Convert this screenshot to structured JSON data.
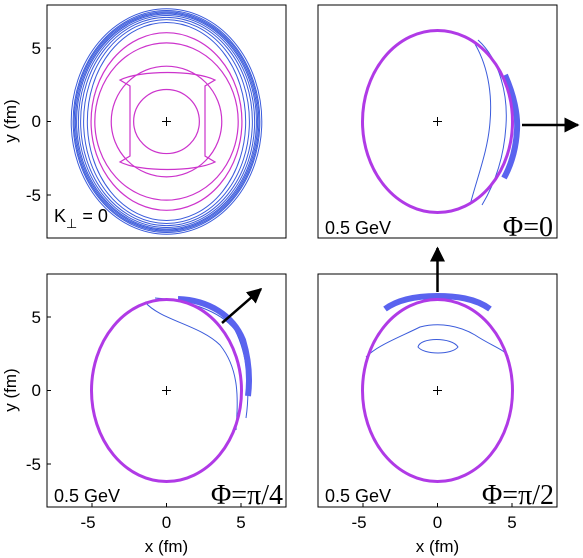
{
  "chart_data": [
    {
      "type": "contour",
      "panel": "top-left",
      "xlim": [
        -8,
        8
      ],
      "ylim": [
        -8,
        8
      ],
      "xticks": [],
      "yticks": [
        "-5",
        "0",
        "5"
      ],
      "xlabel": "",
      "ylabel": "y (fm)",
      "annotation_left": "K",
      "annotation_sub": "⊥",
      "annotation_rest": " = 0",
      "phi_label": "",
      "arrow": "none",
      "contours": {
        "blue": [
          [
            5.3,
            6.8
          ],
          [
            5.55,
            7.0
          ],
          [
            5.75,
            7.15
          ],
          [
            5.9,
            7.28
          ],
          [
            6.02,
            7.38
          ],
          [
            6.1,
            7.46
          ],
          [
            6.18,
            7.54
          ],
          [
            6.25,
            7.62
          ],
          [
            6.38,
            7.74
          ]
        ],
        "magenta": [
          [
            2.2,
            2.2
          ],
          [
            3.7,
            3.8
          ],
          [
            4.8,
            5.4
          ],
          [
            5.05,
            6.1
          ]
        ]
      }
    },
    {
      "type": "contour",
      "panel": "top-right",
      "xlim": [
        -8,
        8
      ],
      "ylim": [
        -8,
        8
      ],
      "xticks": [],
      "yticks": [],
      "xlabel": "",
      "ylabel": "",
      "annotation_left": "0.5 GeV",
      "phi_label": "Φ=0",
      "arrow": "right",
      "ellipse": [
        5.05,
        6.2
      ]
    },
    {
      "type": "contour",
      "panel": "bottom-left",
      "xlim": [
        -8,
        8
      ],
      "ylim": [
        -8,
        8
      ],
      "xticks": [
        "-5",
        "0",
        "5"
      ],
      "yticks": [
        "-5",
        "0",
        "5"
      ],
      "xlabel": "x (fm)",
      "ylabel": "y (fm)",
      "annotation_left": "0.5 GeV",
      "phi_label": "Φ=π/4",
      "arrow": "diagonal",
      "ellipse": [
        5.05,
        6.2
      ]
    },
    {
      "type": "contour",
      "panel": "bottom-right",
      "xlim": [
        -8,
        8
      ],
      "ylim": [
        -8,
        8
      ],
      "xticks": [
        "-5",
        "0",
        "5"
      ],
      "yticks": [],
      "xlabel": "x (fm)",
      "ylabel": "",
      "annotation_left": "0.5 GeV",
      "phi_label": "Φ=π/2",
      "arrow": "up",
      "ellipse": [
        5.05,
        6.2
      ]
    }
  ],
  "colors": {
    "blue": "#3b5bdb",
    "magenta": "#cc33cc",
    "bright_magenta": "#b03ae6",
    "axis": "#000000"
  }
}
